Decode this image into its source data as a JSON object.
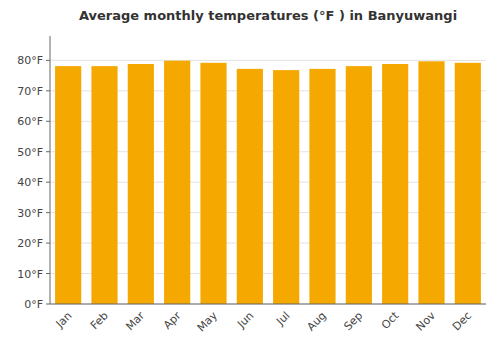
{
  "chart_data": {
    "type": "bar",
    "title": "Average monthly temperatures (°F ) in Banyuwangi",
    "categories": [
      "Jan",
      "Feb",
      "Mar",
      "Apr",
      "May",
      "Jun",
      "Jul",
      "Aug",
      "Sep",
      "Oct",
      "Nov",
      "Dec"
    ],
    "values": [
      78.1,
      78.1,
      78.8,
      79.9,
      79.2,
      77.2,
      76.8,
      77.2,
      78.1,
      78.8,
      79.7,
      79.2
    ],
    "color": "#F5A800",
    "ylim": [
      0,
      88
    ],
    "yticks": [
      {
        "value": 0,
        "label": "0°F"
      },
      {
        "value": 10,
        "label": "10°F"
      },
      {
        "value": 20,
        "label": "20°F"
      },
      {
        "value": 30,
        "label": "30°F"
      },
      {
        "value": 40,
        "label": "40°F"
      },
      {
        "value": 50,
        "label": "50°F"
      },
      {
        "value": 60,
        "label": "60°F"
      },
      {
        "value": 70,
        "label": "70°F"
      },
      {
        "value": 80,
        "label": "80°F"
      }
    ],
    "grid": true
  }
}
